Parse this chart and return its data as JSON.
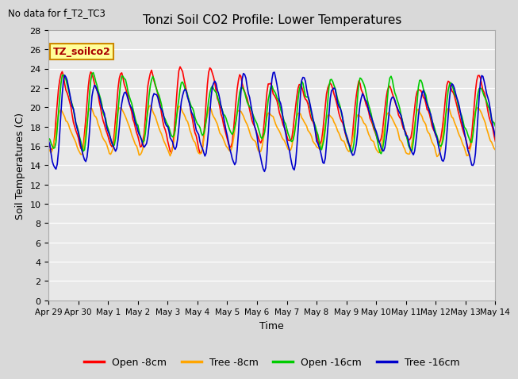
{
  "title": "Tonzi Soil CO2 Profile: Lower Temperatures",
  "subtitle": "No data for f_T2_TC3",
  "xlabel": "Time",
  "ylabel": "Soil Temperatures (C)",
  "background_color": "#d9d9d9",
  "plot_bg_color": "#e8e8e8",
  "ylim": [
    0,
    28
  ],
  "yticks": [
    0,
    2,
    4,
    6,
    8,
    10,
    12,
    14,
    16,
    18,
    20,
    22,
    24,
    26,
    28
  ],
  "n_days": 15,
  "tick_labels": [
    "Apr 29",
    "Apr 30",
    "May 1",
    "May 2",
    "May 3",
    "May 4",
    "May 5",
    "May 6",
    "May 7",
    "May 8",
    "May 9",
    "May 10",
    "May 11",
    "May 12",
    "May 13",
    "May 14"
  ],
  "legend_labels": [
    "Open -8cm",
    "Tree -8cm",
    "Open -16cm",
    "Tree -16cm"
  ],
  "legend_colors": [
    "#ff0000",
    "#ffa500",
    "#00cc00",
    "#0000cc"
  ],
  "annotation_text": "TZ_soilco2",
  "annotation_bg": "#ffff99",
  "annotation_border": "#cc8800",
  "title_fontsize": 11,
  "axis_label_fontsize": 9,
  "tick_fontsize": 8,
  "legend_fontsize": 9
}
